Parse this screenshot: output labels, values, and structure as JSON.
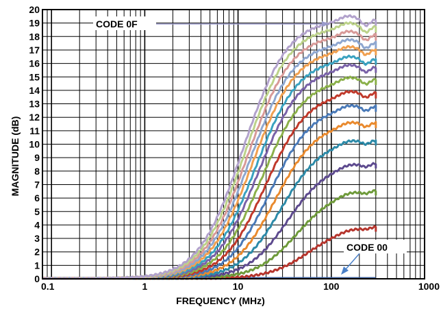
{
  "chart_data": {
    "type": "line",
    "xscale": "log",
    "xlim": [
      0.08,
      1000
    ],
    "ylim": [
      0,
      20
    ],
    "xlabel": "FREQUENCY (MHz)",
    "ylabel": "MAGNITUDE (dB)",
    "grid": true,
    "x_tick_labels": [
      "0.1",
      "1",
      "10",
      "100",
      "1000"
    ],
    "x_tick_values": [
      0.1,
      1,
      10,
      100,
      1000
    ],
    "y_tick_labels": [
      "0",
      "1",
      "2",
      "3",
      "4",
      "5",
      "6",
      "7",
      "8",
      "9",
      "10",
      "11",
      "12",
      "13",
      "14",
      "15",
      "16",
      "17",
      "18",
      "19",
      "20"
    ],
    "y_tick_values": [
      0,
      1,
      2,
      3,
      4,
      5,
      6,
      7,
      8,
      9,
      10,
      11,
      12,
      13,
      14,
      15,
      16,
      17,
      18,
      19,
      20
    ],
    "annotations": [
      {
        "text": "CODE 0F",
        "arrow_to": {
          "x": 130,
          "y": 19.3
        }
      },
      {
        "text": "CODE 00",
        "arrow_to": {
          "x": 100,
          "y": 0.1
        }
      }
    ],
    "series": [
      {
        "code": 0,
        "color": "#3b5e9a",
        "peak_db": 0,
        "f50_mhz": 20
      },
      {
        "code": 1,
        "color": "#b5342c",
        "peak_db": 4.0,
        "f50_mhz": 65
      },
      {
        "code": 2,
        "color": "#6e9a3a",
        "peak_db": 6.7,
        "f50_mhz": 52
      },
      {
        "code": 3,
        "color": "#5d4a8e",
        "peak_db": 8.7,
        "f50_mhz": 44
      },
      {
        "code": 4,
        "color": "#2c8aa8",
        "peak_db": 10.4,
        "f50_mhz": 39
      },
      {
        "code": 5,
        "color": "#e98a2e",
        "peak_db": 11.7,
        "f50_mhz": 35
      },
      {
        "code": 6,
        "color": "#4a7ab8",
        "peak_db": 12.9,
        "f50_mhz": 32
      },
      {
        "code": 7,
        "color": "#c0392b",
        "peak_db": 13.9,
        "f50_mhz": 29.5
      },
      {
        "code": 8,
        "color": "#8bb04a",
        "peak_db": 14.9,
        "f50_mhz": 27.5
      },
      {
        "code": 9,
        "color": "#7a62a8",
        "peak_db": 15.8,
        "f50_mhz": 26
      },
      {
        "code": 10,
        "color": "#3aa2c0",
        "peak_db": 16.4,
        "f50_mhz": 24.5
      },
      {
        "code": 11,
        "color": "#f0a050",
        "peak_db": 17.1,
        "f50_mhz": 23.3
      },
      {
        "code": 12,
        "color": "#8ea7d0",
        "peak_db": 17.6,
        "f50_mhz": 22.2
      },
      {
        "code": 13,
        "color": "#d89a98",
        "peak_db": 18.2,
        "f50_mhz": 21.3
      },
      {
        "code": 14,
        "color": "#bcd28a",
        "peak_db": 18.8,
        "f50_mhz": 20.5
      },
      {
        "code": 15,
        "color": "#b2a2cc",
        "peak_db": 19.3,
        "f50_mhz": 19.7
      }
    ]
  }
}
